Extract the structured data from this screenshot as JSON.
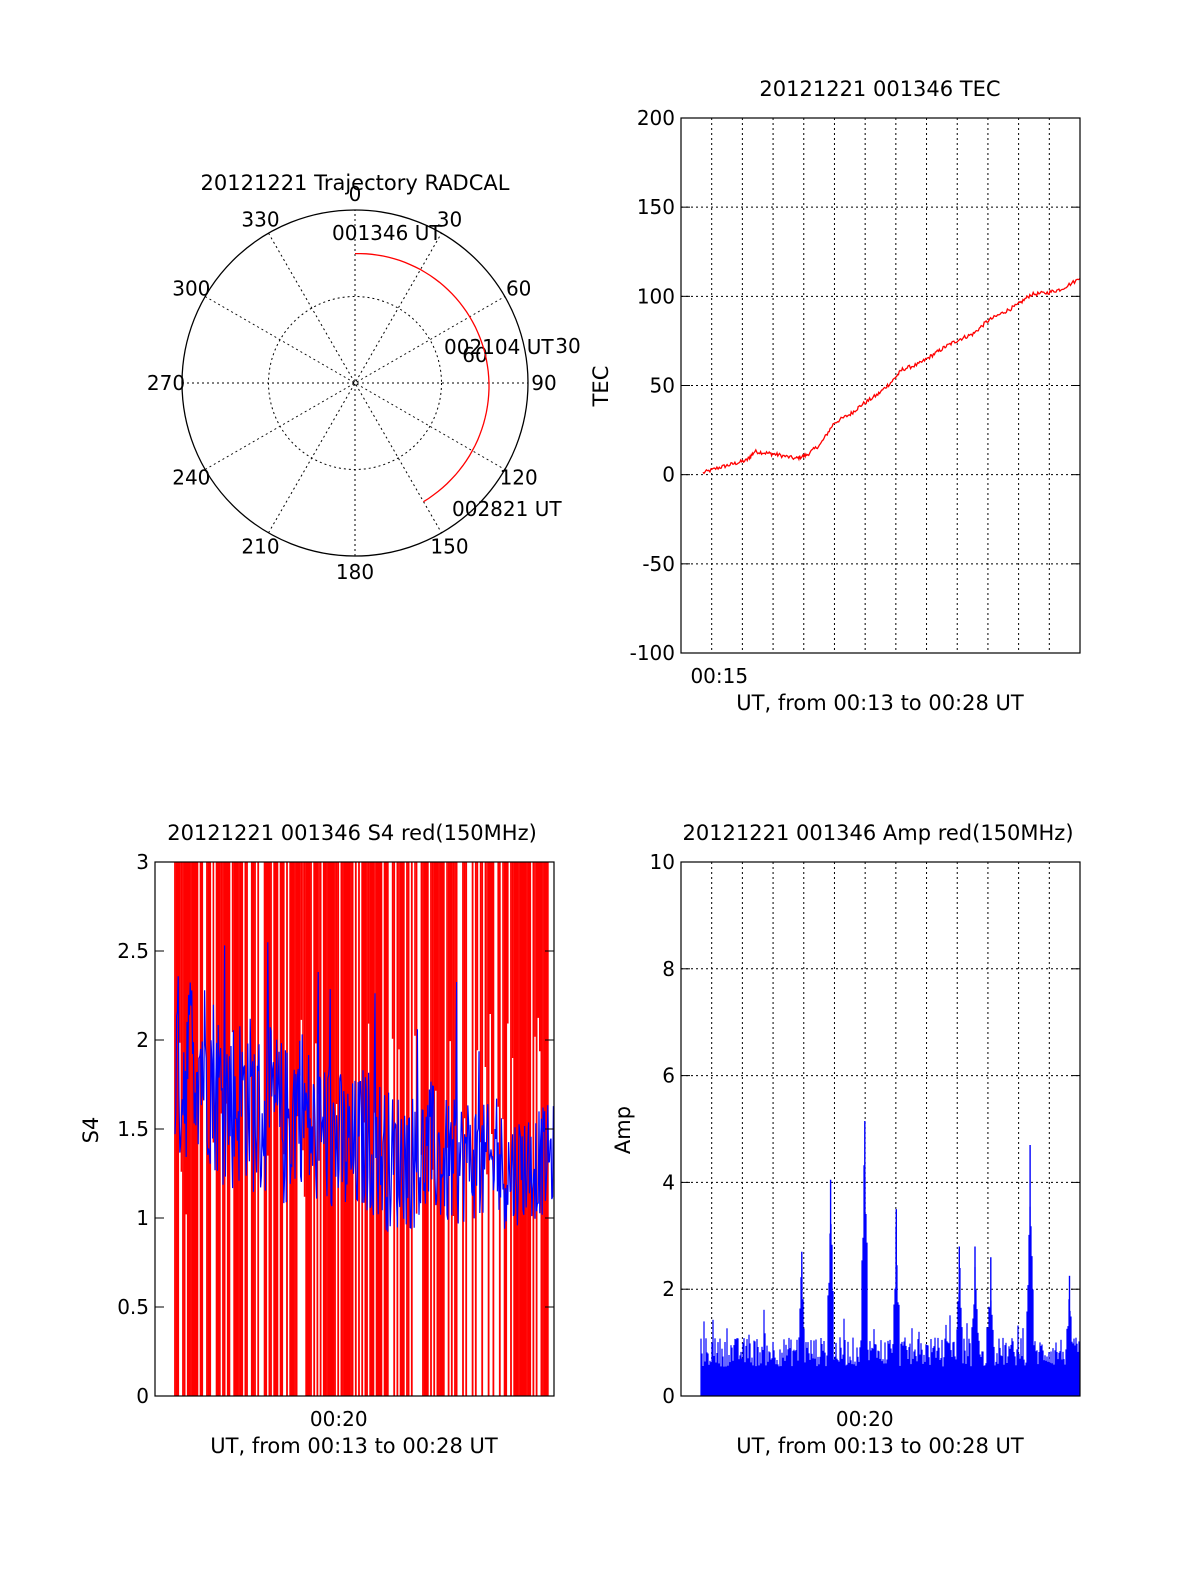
{
  "chart_data": [
    {
      "type": "polar-trajectory",
      "title": "20121221 Trajectory RADCAL",
      "angle_labels": [
        "0",
        "30",
        "60",
        "90",
        "120",
        "150",
        "180",
        "210",
        "240",
        "270",
        "300",
        "330"
      ],
      "radius_labels": [
        "30",
        "60"
      ],
      "trajectory_color": "#ff0000",
      "trajectory": {
        "az_start_deg": 0,
        "az_end_deg": 150,
        "zenith_start_deg": 68,
        "zenith_end_deg": 72
      },
      "annotations": [
        {
          "text": "001346 UT",
          "az_deg": 0
        },
        {
          "text": "002104 UT",
          "az_deg": 75
        },
        {
          "text": "002821 UT",
          "az_deg": 150
        }
      ]
    },
    {
      "type": "line",
      "title": "20121221 001346 TEC",
      "ylabel": "TEC",
      "xlabel": "UT, from 00:13 to 00:28 UT",
      "x_tick_labels": [
        "00:15"
      ],
      "x_tick_label_minute": 15,
      "xlim_minutes": [
        13.6,
        28.2
      ],
      "ylim": [
        -100,
        200
      ],
      "y_ticks": [
        -100,
        -50,
        0,
        50,
        100,
        150,
        200
      ],
      "color": "#ff0000",
      "series": [
        {
          "x_minutes": [
            14.4,
            15.0,
            15.5,
            16.0,
            16.3,
            16.8,
            17.2,
            17.8,
            18.2,
            18.7,
            19.2,
            19.8,
            20.2,
            20.8,
            21.3,
            21.7,
            22.3,
            22.8,
            23.3,
            23.8,
            24.3,
            24.8,
            25.4,
            25.9,
            26.4,
            27.0,
            27.5,
            28.2
          ],
          "values": [
            1,
            4,
            6,
            8,
            13,
            12,
            11,
            9,
            11,
            17,
            29,
            34,
            39,
            45,
            52,
            59,
            62,
            67,
            72,
            76,
            79,
            86,
            91,
            95,
            101,
            102,
            104,
            110
          ]
        }
      ]
    },
    {
      "type": "line",
      "title": "20121221 001346 S4 red(150MHz)",
      "ylabel": "S4",
      "xlabel": "UT, from 00:13 to 00:28 UT",
      "x_tick_labels": [
        "00:20"
      ],
      "x_tick_label_minute": 20,
      "xlim_minutes": [
        13.0,
        28.2
      ],
      "ylim": [
        0,
        3
      ],
      "y_ticks": [
        0,
        0.5,
        1,
        1.5,
        2,
        2.5,
        3
      ],
      "series": [
        {
          "name": "",
          "color": "#0000ff",
          "x_minutes": [
            13.0,
            13.5,
            14.0,
            14.5,
            15.0,
            15.5,
            16.0,
            16.5,
            17.0,
            17.5,
            18.0,
            18.5,
            19.0,
            19.5,
            20.0,
            20.5,
            21.0,
            21.5,
            22.0,
            22.5,
            23.0,
            23.5,
            24.0,
            24.5,
            25.0,
            25.5,
            26.0,
            26.5,
            27.0,
            27.5,
            28.2
          ],
          "values": [
            1.9,
            2.0,
            1.8,
            1.95,
            1.85,
            1.7,
            1.65,
            1.7,
            1.55,
            1.6,
            1.5,
            1.7,
            1.45,
            1.5,
            1.4,
            1.35,
            1.45,
            1.4,
            1.3,
            1.35,
            1.3,
            1.4,
            1.3,
            1.3,
            1.35,
            1.3,
            1.3,
            1.25,
            1.3,
            1.3,
            1.35
          ]
        }
      ],
      "red_fill_color": "#ff0000"
    },
    {
      "type": "bar",
      "title": "20121221 001346 Amp red(150MHz)",
      "ylabel": "Amp",
      "xlabel": "UT, from 00:13 to 00:28 UT",
      "x_tick_labels": [
        "00:20"
      ],
      "x_tick_label_minute": 20,
      "xlim_minutes": [
        13.0,
        28.2
      ],
      "ylim": [
        0,
        10
      ],
      "y_ticks": [
        0,
        2,
        4,
        6,
        8,
        10
      ],
      "color": "#0000ff",
      "baseline_level": 1.0,
      "spikes": [
        {
          "x_minute": 17.6,
          "value": 2.7
        },
        {
          "x_minute": 18.7,
          "value": 4.05
        },
        {
          "x_minute": 20.0,
          "value": 5.15
        },
        {
          "x_minute": 21.2,
          "value": 3.5
        },
        {
          "x_minute": 23.6,
          "value": 2.8
        },
        {
          "x_minute": 24.2,
          "value": 2.8
        },
        {
          "x_minute": 24.8,
          "value": 2.6
        },
        {
          "x_minute": 26.3,
          "value": 4.7
        },
        {
          "x_minute": 27.8,
          "value": 2.25
        }
      ]
    }
  ]
}
